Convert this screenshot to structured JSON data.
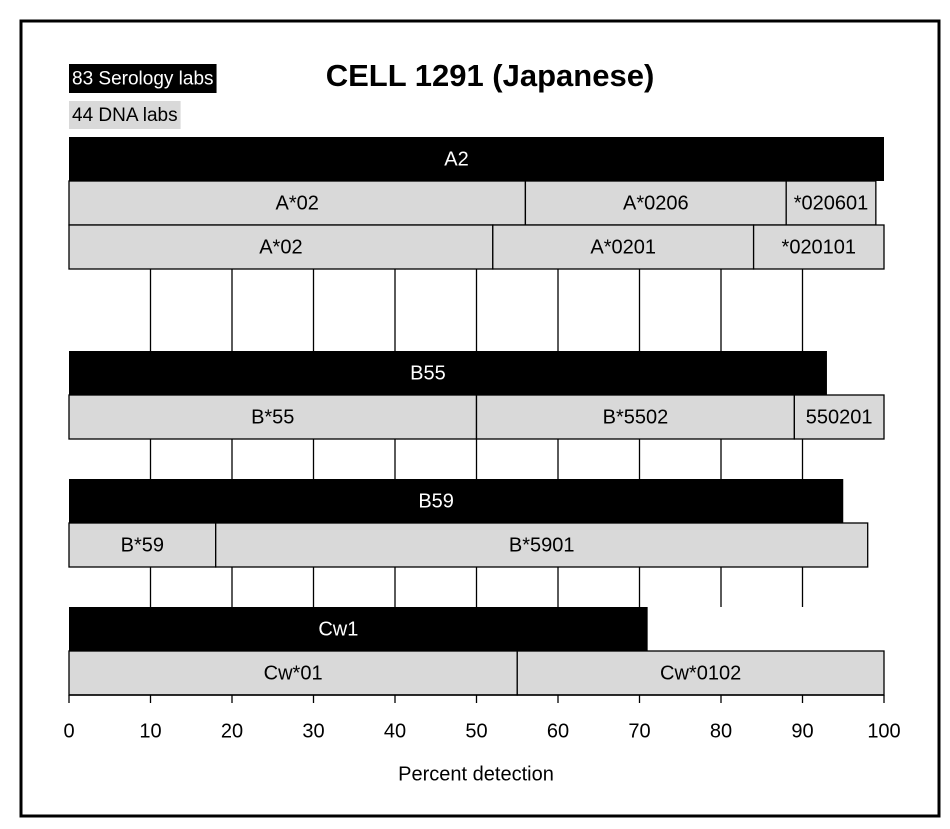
{
  "chart_data": {
    "type": "bar",
    "title": "CELL 1291 (Japanese)",
    "legend": [
      {
        "name": "83 Serology labs",
        "color": "#000000"
      },
      {
        "name": "44 DNA labs",
        "color": "#d9d9d9"
      }
    ],
    "xlabel": "Percent detection",
    "xlim": [
      0,
      100
    ],
    "xticks": [
      0,
      10,
      20,
      30,
      40,
      50,
      60,
      70,
      80,
      90,
      100
    ],
    "groups": [
      {
        "serology": {
          "label": "A2",
          "value": 100
        },
        "dna": [
          [
            {
              "label": "A*02",
              "value": 56
            },
            {
              "label": "A*0206",
              "value": 32
            },
            {
              "label": "*020601",
              "value": 11
            }
          ],
          [
            {
              "label": "A*02",
              "value": 52
            },
            {
              "label": "A*0201",
              "value": 32
            },
            {
              "label": "*020101",
              "value": 16
            }
          ]
        ]
      },
      {
        "serology": {
          "label": "B55",
          "value": 93
        },
        "dna": [
          [
            {
              "label": "B*55",
              "value": 50
            },
            {
              "label": "B*5502",
              "value": 39
            },
            {
              "label": "550201",
              "value": 11
            }
          ]
        ]
      },
      {
        "serology": {
          "label": "B59",
          "value": 95
        },
        "dna": [
          [
            {
              "label": "B*59",
              "value": 18
            },
            {
              "label": "B*5901",
              "value": 80
            }
          ]
        ]
      },
      {
        "serology": {
          "label": "Cw1",
          "value": 71
        },
        "dna": [
          [
            {
              "label": "Cw*01",
              "value": 55
            },
            {
              "label": "Cw*0102",
              "value": 45
            }
          ]
        ]
      }
    ]
  }
}
